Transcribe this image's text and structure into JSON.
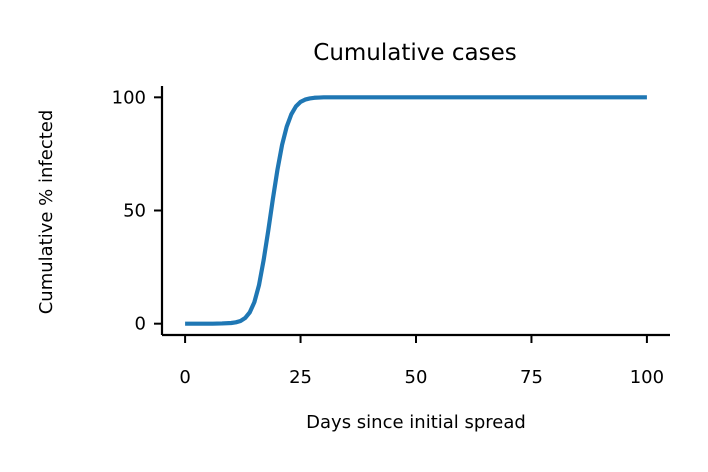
{
  "chart_data": {
    "type": "line",
    "title": "Cumulative cases",
    "xlabel": "Days since initial spread",
    "ylabel": "Cumulative % infected",
    "xlim": [
      -5,
      105
    ],
    "ylim": [
      -5,
      105
    ],
    "xticks": [
      0,
      25,
      50,
      75,
      100
    ],
    "yticks": [
      0,
      50,
      100
    ],
    "grid": false,
    "legend": "none",
    "series": [
      {
        "color": "#1f77b4",
        "x": [
          0,
          2,
          4,
          6,
          8,
          10,
          11,
          12,
          13,
          14,
          15,
          16,
          17,
          18,
          19,
          20,
          21,
          22,
          23,
          24,
          25,
          26,
          27,
          28,
          29,
          30,
          35,
          40,
          50,
          60,
          70,
          80,
          90,
          100
        ],
        "y": [
          0,
          0,
          0,
          0,
          0.1,
          0.3,
          0.6,
          1.2,
          2.5,
          5,
          9.5,
          17,
          28,
          41,
          55,
          68,
          79,
          87,
          92.5,
          96,
          98,
          99,
          99.5,
          99.8,
          99.9,
          100,
          100,
          100,
          100,
          100,
          100,
          100,
          100,
          100
        ]
      }
    ]
  }
}
